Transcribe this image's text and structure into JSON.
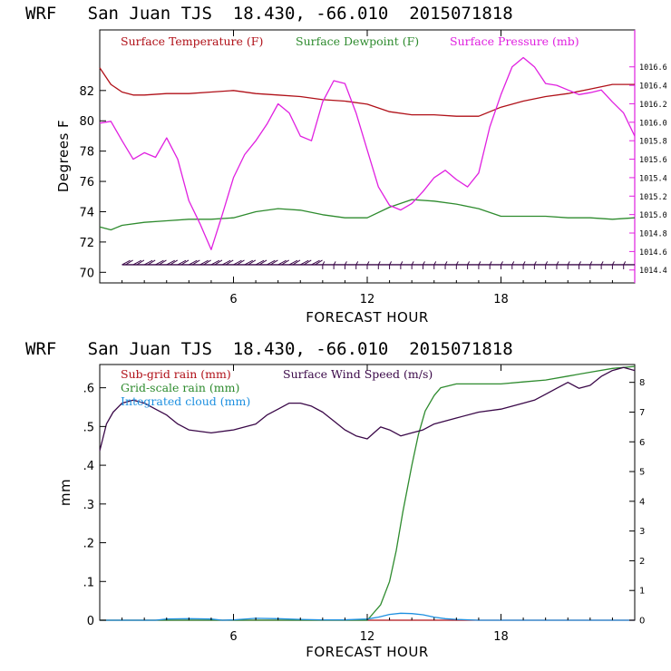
{
  "chart_data": [
    {
      "type": "line",
      "title": "WRF   San Juan TJS  18.430, -66.010  2015071818",
      "xlabel": "FORECAST HOUR",
      "ylabel": "Degrees F",
      "xlim": [
        0,
        24
      ],
      "ylim": [
        69.3,
        86
      ],
      "y2lim": [
        1014.26,
        1017.0
      ],
      "xticks": [
        "6",
        "12",
        "18"
      ],
      "yticks": [
        "70",
        "72",
        "74",
        "76",
        "78",
        "80",
        "82"
      ],
      "y2ticks": [
        "1014.4",
        "1014.6",
        "1014.8",
        "1015.0",
        "1015.2",
        "1015.4",
        "1015.6",
        "1015.8",
        "1016.0",
        "1016.2",
        "1016.4",
        "1016.6"
      ],
      "legend_position": "top",
      "wind_barbs": {
        "y": 70.5,
        "from_hour": 1,
        "to_hour": 24
      },
      "series": [
        {
          "name": "Surface Temperature (F)",
          "color": "#b01018",
          "axis": "left",
          "x": [
            0,
            0.5,
            1,
            1.5,
            2,
            3,
            4,
            5,
            6,
            7,
            8,
            9,
            10,
            11,
            12,
            13,
            14,
            15,
            16,
            17,
            18,
            19,
            20,
            21,
            22,
            23,
            24
          ],
          "y": [
            83.5,
            82.4,
            81.9,
            81.7,
            81.7,
            81.8,
            81.8,
            81.9,
            82.0,
            81.8,
            81.7,
            81.6,
            81.4,
            81.3,
            81.1,
            80.6,
            80.4,
            80.4,
            80.3,
            80.3,
            80.9,
            81.3,
            81.6,
            81.8,
            82.1,
            82.4,
            82.4
          ]
        },
        {
          "name": "Surface Dewpoint (F)",
          "color": "#2e8b2e",
          "axis": "left",
          "x": [
            0,
            0.5,
            1,
            2,
            3,
            4,
            5,
            6,
            7,
            8,
            9,
            10,
            11,
            12,
            13,
            14,
            15,
            16,
            17,
            18,
            19,
            20,
            21,
            22,
            23,
            24
          ],
          "y": [
            73.0,
            72.8,
            73.1,
            73.3,
            73.4,
            73.5,
            73.5,
            73.6,
            74.0,
            74.2,
            74.1,
            73.8,
            73.6,
            73.6,
            74.3,
            74.8,
            74.7,
            74.5,
            74.2,
            73.7,
            73.7,
            73.7,
            73.6,
            73.6,
            73.5,
            73.6
          ]
        },
        {
          "name": "Surface Pressure (mb)",
          "color": "#e020e0",
          "axis": "right",
          "x": [
            0,
            0.5,
            1,
            1.5,
            2,
            2.5,
            3,
            3.5,
            4,
            4.5,
            5,
            5.5,
            6,
            6.5,
            7,
            7.5,
            8,
            8.5,
            9,
            9.5,
            10,
            10.5,
            11,
            11.5,
            12,
            12.5,
            13,
            13.5,
            14,
            14.5,
            15,
            15.5,
            16,
            16.5,
            17,
            17.5,
            18,
            18.5,
            19,
            19.5,
            20,
            20.5,
            21,
            21.5,
            22,
            22.5,
            23,
            23.5,
            24
          ],
          "y": [
            1015.99,
            1016.01,
            1015.8,
            1015.6,
            1015.67,
            1015.62,
            1015.83,
            1015.6,
            1015.15,
            1014.9,
            1014.62,
            1015.0,
            1015.4,
            1015.65,
            1015.8,
            1015.98,
            1016.2,
            1016.1,
            1015.85,
            1015.8,
            1016.22,
            1016.45,
            1016.42,
            1016.1,
            1015.7,
            1015.3,
            1015.1,
            1015.05,
            1015.12,
            1015.25,
            1015.4,
            1015.48,
            1015.38,
            1015.3,
            1015.45,
            1015.95,
            1016.3,
            1016.6,
            1016.7,
            1016.6,
            1016.42,
            1016.4,
            1016.35,
            1016.3,
            1016.32,
            1016.35,
            1016.22,
            1016.1,
            1015.85
          ]
        }
      ]
    },
    {
      "type": "line",
      "title": "WRF   San Juan TJS  18.430, -66.010  2015071818",
      "xlabel": "FORECAST HOUR",
      "ylabel": "mm",
      "xlim": [
        0,
        24
      ],
      "ylim": [
        0,
        0.66
      ],
      "y2lim": [
        0,
        8.6
      ],
      "xticks": [
        "6",
        "12",
        "18"
      ],
      "yticks": [
        "0",
        ".1",
        ".2",
        ".3",
        ".4",
        ".5",
        ".6"
      ],
      "y2ticks": [
        "0",
        "1",
        "2",
        "3",
        "4",
        "5",
        "6",
        "7",
        "8"
      ],
      "legend_position": "top-left",
      "series": [
        {
          "name": "Sub-grid rain (mm)",
          "color": "#b01018",
          "axis": "left",
          "x": [
            0,
            24
          ],
          "y": [
            0,
            0
          ]
        },
        {
          "name": "Grid-scale rain (mm)",
          "color": "#2e8b2e",
          "axis": "left",
          "x": [
            0,
            12,
            12.3,
            12.6,
            13,
            13.3,
            13.6,
            14,
            14.3,
            14.6,
            15,
            15.3,
            16,
            17,
            18,
            19,
            20,
            21,
            22,
            23,
            24
          ],
          "y": [
            0,
            0,
            0.02,
            0.04,
            0.1,
            0.18,
            0.28,
            0.4,
            0.48,
            0.54,
            0.58,
            0.6,
            0.61,
            0.61,
            0.61,
            0.615,
            0.62,
            0.63,
            0.64,
            0.65,
            0.655
          ]
        },
        {
          "name": "Integrated cloud (mm)",
          "color": "#1e90e0",
          "axis": "left",
          "x": [
            0,
            2.5,
            3,
            4,
            5,
            5.5,
            6,
            7,
            8,
            9,
            10,
            11,
            12,
            12.5,
            13,
            13.5,
            14,
            14.5,
            15,
            15.5,
            16,
            17,
            18,
            19,
            20,
            21,
            22,
            23,
            24
          ],
          "y": [
            0,
            0,
            0.003,
            0.004,
            0.003,
            0,
            0.001,
            0.005,
            0.004,
            0.002,
            0.001,
            0.001,
            0.003,
            0.008,
            0.015,
            0.018,
            0.017,
            0.014,
            0.008,
            0.004,
            0.002,
            0,
            0,
            0,
            0,
            0,
            0,
            0,
            0
          ]
        },
        {
          "name": "Surface Wind Speed (m/s)",
          "color": "#3a0848",
          "axis": "right",
          "x": [
            0,
            0.3,
            0.6,
            1,
            1.5,
            2,
            2.5,
            3,
            3.5,
            4,
            5,
            6,
            7,
            7.5,
            8,
            8.5,
            9,
            9.5,
            10,
            10.5,
            11,
            11.5,
            12,
            12.3,
            12.6,
            13,
            13.5,
            14,
            14.5,
            15,
            16,
            17,
            18,
            19,
            19.5,
            20,
            20.5,
            21,
            21.5,
            22,
            22.5,
            23,
            23.5,
            24
          ],
          "y": [
            5.7,
            6.6,
            7.0,
            7.3,
            7.4,
            7.3,
            7.1,
            6.9,
            6.6,
            6.4,
            6.3,
            6.4,
            6.6,
            6.9,
            7.1,
            7.3,
            7.3,
            7.2,
            7.0,
            6.7,
            6.4,
            6.2,
            6.1,
            6.3,
            6.5,
            6.4,
            6.2,
            6.3,
            6.4,
            6.6,
            6.8,
            7.0,
            7.1,
            7.3,
            7.4,
            7.6,
            7.8,
            8.0,
            7.8,
            7.9,
            8.2,
            8.4,
            8.5,
            8.4
          ]
        }
      ]
    }
  ]
}
